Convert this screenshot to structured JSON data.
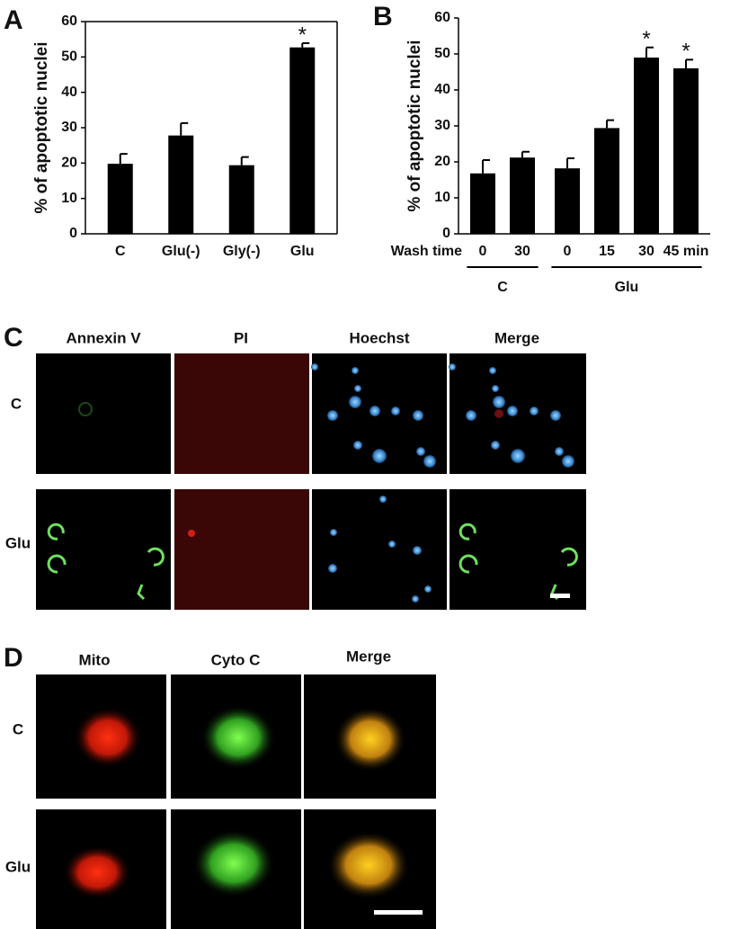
{
  "chart_data": [
    {
      "type": "bar",
      "panel": "A",
      "ylabel": "% of apoptotic nuclei",
      "categories": [
        "C",
        "Glu(-)",
        "Gly(-)",
        "Glu"
      ],
      "values": [
        19.8,
        27.8,
        19.4,
        52.7
      ],
      "errors": [
        2.8,
        3.5,
        2.3,
        1.2
      ],
      "significance": [
        null,
        null,
        null,
        "*"
      ],
      "ylim": [
        0,
        60
      ],
      "yticks": [
        0,
        10,
        20,
        30,
        40,
        50,
        60
      ],
      "color": "#000000",
      "frame": true
    },
    {
      "type": "bar",
      "panel": "B",
      "ylabel": "% of apoptotic nuclei",
      "xlabel": "Wash time",
      "groups": [
        {
          "name": "C",
          "categories": [
            "0",
            "30"
          ],
          "values": [
            16.8,
            21.2
          ],
          "errors": [
            3.7,
            1.6
          ],
          "significance": [
            null,
            null
          ]
        },
        {
          "name": "Glu",
          "categories": [
            "0",
            "15",
            "30",
            "45 min"
          ],
          "values": [
            18.2,
            29.4,
            49,
            46
          ],
          "errors": [
            2.8,
            2.2,
            2.8,
            2.4
          ],
          "significance": [
            null,
            null,
            "*",
            "*"
          ]
        }
      ],
      "ylim": [
        0,
        60
      ],
      "yticks": [
        0,
        10,
        20,
        30,
        40,
        50,
        60
      ],
      "color": "#000000",
      "frame": false
    }
  ],
  "panel_c": {
    "label": "C",
    "columns": [
      "Annexin V",
      "PI",
      "Hoechst",
      "Merge"
    ],
    "rows": [
      "C",
      "Glu"
    ]
  },
  "panel_d": {
    "label": "D",
    "columns": [
      "Mito",
      "Cyto C",
      "Merge"
    ],
    "rows": [
      "C",
      "Glu"
    ]
  }
}
